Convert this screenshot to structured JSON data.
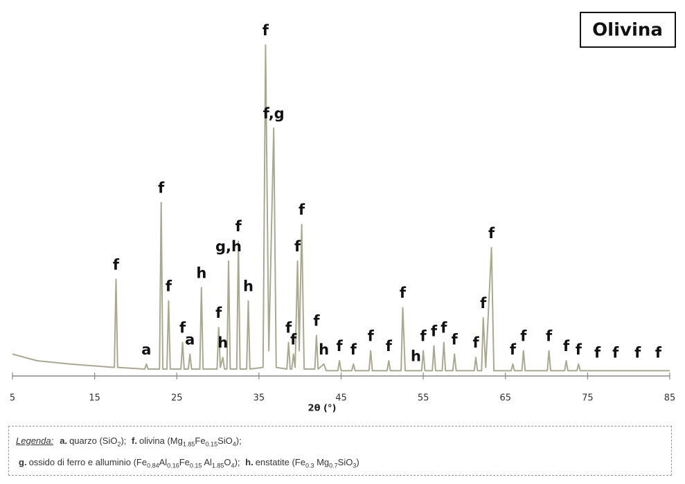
{
  "chart_data": {
    "type": "line",
    "title": "Olivina",
    "x_label": "2θ (°)",
    "xlim": [
      5,
      85
    ],
    "ylim": [
      0,
      100
    ],
    "xticks": [
      5,
      15,
      25,
      35,
      45,
      55,
      65,
      75,
      85
    ],
    "series": [
      {
        "color": "#a9a890",
        "x": [
          5,
          8,
          12,
          17.4,
          17.6,
          17.8,
          21.1,
          21.3,
          21.5,
          22.9,
          23.1,
          23.3,
          23.8,
          24.0,
          24.2,
          25.5,
          25.7,
          25.9,
          26.4,
          26.6,
          26.8,
          27.8,
          28.0,
          28.2,
          29.9,
          30.1,
          30.3,
          30.6,
          30.8,
          31.1,
          31.3,
          31.5,
          32.3,
          32.5,
          32.7,
          33.5,
          33.7,
          33.9,
          35.5,
          35.8,
          36.2,
          36.8,
          37.1,
          38.4,
          38.6,
          38.8,
          39.0,
          39.2,
          39.4,
          39.7,
          39.9,
          40.2,
          40.5,
          41.8,
          42.0,
          42.2,
          42.9,
          43.2,
          44.6,
          44.8,
          45.0,
          46.3,
          46.5,
          46.7,
          48.4,
          48.6,
          48.8,
          50.6,
          50.8,
          51.0,
          52.3,
          52.5,
          52.8,
          54.1,
          54.8,
          55.0,
          55.2,
          56.1,
          56.3,
          56.5,
          57.3,
          57.5,
          57.7,
          58.6,
          58.8,
          59.0,
          61.2,
          61.4,
          61.6,
          62.1,
          62.3,
          62.6,
          63.3,
          63.6,
          65.7,
          65.9,
          66.1,
          67.0,
          67.2,
          67.4,
          70.1,
          70.3,
          70.5,
          72.2,
          72.4,
          72.6,
          73.7,
          73.9,
          74.1,
          85
        ],
        "values": [
          7,
          5,
          4,
          3,
          29.5,
          3,
          2.5,
          4,
          2.5,
          2.5,
          52.6,
          2.5,
          2.5,
          23,
          2.5,
          2.5,
          10.5,
          2.5,
          2.5,
          7,
          2.5,
          2.5,
          27,
          2.5,
          2.5,
          15,
          3,
          6,
          2.5,
          2.5,
          35,
          2.5,
          2.5,
          41,
          2.5,
          2.5,
          23,
          2.5,
          3,
          100,
          8,
          75,
          3,
          2.5,
          10.5,
          2.5,
          2.5,
          7,
          3,
          35,
          8,
          46,
          2.5,
          2.5,
          12.6,
          2.5,
          4,
          2,
          2,
          5,
          2,
          2,
          4,
          2,
          2,
          8,
          2,
          2,
          5,
          2,
          2,
          21,
          2,
          2,
          2,
          8,
          2,
          2,
          9.5,
          2,
          2,
          10.5,
          2,
          2,
          7,
          2,
          2,
          6,
          2,
          2,
          17.9,
          3,
          39,
          2,
          2,
          4,
          2,
          2,
          8,
          2,
          2,
          8,
          2,
          2,
          5,
          2,
          2,
          4,
          2,
          2
        ]
      }
    ],
    "annotations": [
      {
        "text": "f",
        "x": 17.6,
        "y": 29.5
      },
      {
        "text": "a",
        "x": 21.3,
        "y": 4
      },
      {
        "text": "f",
        "x": 23.1,
        "y": 52.6
      },
      {
        "text": "f",
        "x": 24.0,
        "y": 23
      },
      {
        "text": "f",
        "x": 25.7,
        "y": 10.5
      },
      {
        "text": "a",
        "x": 26.6,
        "y": 7
      },
      {
        "text": "h",
        "x": 28.0,
        "y": 27
      },
      {
        "text": "f",
        "x": 30.1,
        "y": 15
      },
      {
        "text": "h",
        "x": 30.6,
        "y": 6
      },
      {
        "text": "g,h",
        "x": 31.3,
        "y": 35
      },
      {
        "text": "f",
        "x": 32.5,
        "y": 41
      },
      {
        "text": "h",
        "x": 33.7,
        "y": 23
      },
      {
        "text": "f",
        "x": 35.8,
        "y": 100
      },
      {
        "text": "f,g",
        "x": 36.8,
        "y": 75
      },
      {
        "text": "f",
        "x": 38.6,
        "y": 10.5
      },
      {
        "text": "f",
        "x": 39.2,
        "y": 7
      },
      {
        "text": "f",
        "x": 39.7,
        "y": 35
      },
      {
        "text": "f",
        "x": 40.2,
        "y": 46
      },
      {
        "text": "f",
        "x": 42.0,
        "y": 12.6
      },
      {
        "text": "h",
        "x": 42.9,
        "y": 4
      },
      {
        "text": "f",
        "x": 44.8,
        "y": 5
      },
      {
        "text": "f",
        "x": 46.5,
        "y": 4
      },
      {
        "text": "f",
        "x": 48.6,
        "y": 8
      },
      {
        "text": "f",
        "x": 50.8,
        "y": 5
      },
      {
        "text": "f",
        "x": 52.5,
        "y": 21
      },
      {
        "text": "h",
        "x": 54.1,
        "y": 2
      },
      {
        "text": "f",
        "x": 55.0,
        "y": 8
      },
      {
        "text": "f",
        "x": 56.3,
        "y": 9.5
      },
      {
        "text": "f",
        "x": 57.5,
        "y": 10.5
      },
      {
        "text": "f",
        "x": 58.8,
        "y": 7
      },
      {
        "text": "f",
        "x": 61.4,
        "y": 6
      },
      {
        "text": "f",
        "x": 62.3,
        "y": 17.9
      },
      {
        "text": "f",
        "x": 63.3,
        "y": 39
      },
      {
        "text": "f",
        "x": 65.9,
        "y": 4
      },
      {
        "text": "f",
        "x": 67.2,
        "y": 8
      },
      {
        "text": "f",
        "x": 70.3,
        "y": 8
      },
      {
        "text": "f",
        "x": 72.4,
        "y": 5
      },
      {
        "text": "f",
        "x": 73.9,
        "y": 4
      },
      {
        "text": "f",
        "x": 76.2,
        "y": 3
      },
      {
        "text": "f",
        "x": 78.4,
        "y": 3
      },
      {
        "text": "f",
        "x": 81.1,
        "y": 3
      },
      {
        "text": "f",
        "x": 83.6,
        "y": 3
      }
    ],
    "legend": {
      "title": "Legenda:",
      "lines": [
        [
          {
            "key": "a.",
            "parts": [
              "quarzo (SiO",
              {
                "sub": "2"
              },
              ");"
            ]
          },
          {
            "key": "f.",
            "parts": [
              "olivina (Mg",
              {
                "sub": "1.85"
              },
              "Fe",
              {
                "sub": "0.15"
              },
              "SiO",
              {
                "sub": "4"
              },
              ");"
            ]
          }
        ],
        [
          {
            "key": "g.",
            "parts": [
              "ossido di ferro e alluminio (Fe",
              {
                "sub": "0.84"
              },
              "Al",
              {
                "sub": "0.16"
              },
              "Fe",
              {
                "sub": "0.15"
              },
              " Al",
              {
                "sub": "1.85"
              },
              "O",
              {
                "sub": "4"
              },
              ");"
            ]
          },
          {
            "key": "h.",
            "parts": [
              "enstatite (Fe",
              {
                "sub": "0.3"
              },
              " Mg",
              {
                "sub": "0.7"
              },
              "SiO",
              {
                "sub": "3"
              },
              ")"
            ]
          }
        ]
      ]
    }
  }
}
